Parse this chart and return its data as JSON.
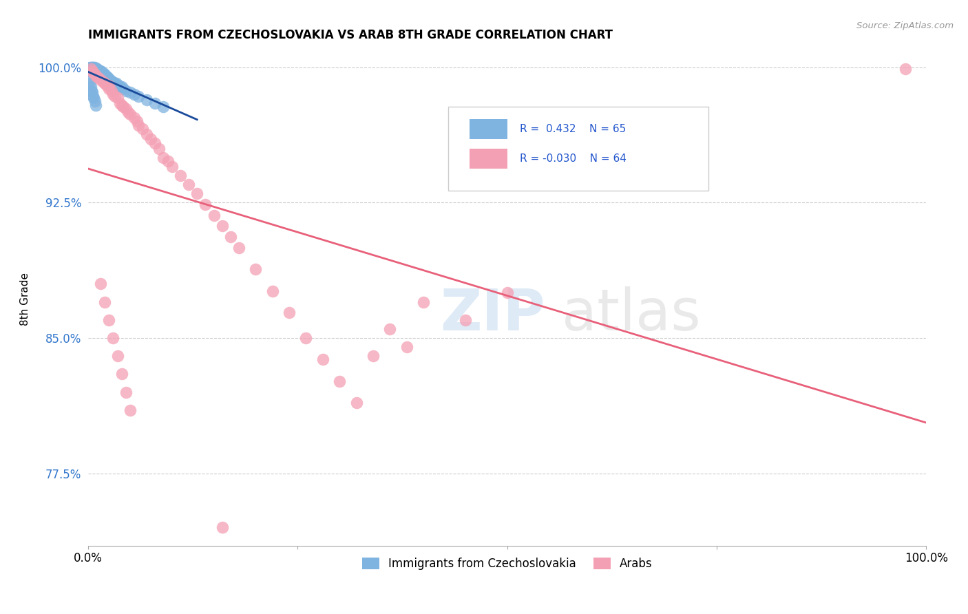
{
  "title": "IMMIGRANTS FROM CZECHOSLOVAKIA VS ARAB 8TH GRADE CORRELATION CHART",
  "source_text": "Source: ZipAtlas.com",
  "ylabel": "8th Grade",
  "xlim": [
    0.0,
    1.0
  ],
  "ylim": [
    0.735,
    1.008
  ],
  "yticks": [
    0.775,
    0.85,
    0.925,
    1.0
  ],
  "ytick_labels": [
    "77.5%",
    "85.0%",
    "92.5%",
    "100.0%"
  ],
  "xticks": [
    0.0,
    0.25,
    0.5,
    0.75,
    1.0
  ],
  "xtick_labels": [
    "0.0%",
    "",
    "",
    "",
    "100.0%"
  ],
  "legend_label1": "Immigrants from Czechoslovakia",
  "legend_label2": "Arabs",
  "blue_color": "#7fb3e0",
  "pink_color": "#f4a0b4",
  "blue_line_color": "#1a4a9a",
  "pink_line_color": "#e8607a",
  "blue_x": [
    0.001,
    0.002,
    0.002,
    0.003,
    0.003,
    0.004,
    0.004,
    0.005,
    0.005,
    0.006,
    0.006,
    0.007,
    0.007,
    0.008,
    0.008,
    0.009,
    0.009,
    0.01,
    0.01,
    0.011,
    0.011,
    0.012,
    0.012,
    0.013,
    0.013,
    0.014,
    0.014,
    0.015,
    0.015,
    0.016,
    0.016,
    0.017,
    0.018,
    0.019,
    0.02,
    0.021,
    0.022,
    0.023,
    0.024,
    0.025,
    0.026,
    0.028,
    0.03,
    0.032,
    0.034,
    0.036,
    0.038,
    0.04,
    0.042,
    0.045,
    0.05,
    0.055,
    0.06,
    0.07,
    0.08,
    0.09,
    0.001,
    0.002,
    0.003,
    0.004,
    0.005,
    0.006,
    0.007,
    0.008,
    0.009
  ],
  "blue_y": [
    0.999,
    1.0,
    0.998,
    1.0,
    0.999,
    1.0,
    0.999,
    1.0,
    0.998,
    1.0,
    0.999,
    1.0,
    0.999,
    1.0,
    0.998,
    0.999,
    0.997,
    0.999,
    0.998,
    0.999,
    0.997,
    0.998,
    0.997,
    0.998,
    0.997,
    0.998,
    0.996,
    0.998,
    0.997,
    0.997,
    0.996,
    0.997,
    0.996,
    0.996,
    0.996,
    0.995,
    0.995,
    0.994,
    0.994,
    0.993,
    0.993,
    0.992,
    0.992,
    0.991,
    0.991,
    0.99,
    0.989,
    0.989,
    0.988,
    0.987,
    0.986,
    0.985,
    0.984,
    0.982,
    0.98,
    0.978,
    0.993,
    0.991,
    0.989,
    0.987,
    0.986,
    0.984,
    0.983,
    0.981,
    0.979
  ],
  "pink_x": [
    0.003,
    0.005,
    0.006,
    0.008,
    0.01,
    0.012,
    0.015,
    0.018,
    0.02,
    0.022,
    0.025,
    0.025,
    0.028,
    0.03,
    0.032,
    0.035,
    0.038,
    0.04,
    0.042,
    0.045,
    0.048,
    0.05,
    0.055,
    0.058,
    0.06,
    0.065,
    0.07,
    0.075,
    0.08,
    0.085,
    0.09,
    0.095,
    0.1,
    0.11,
    0.12,
    0.13,
    0.14,
    0.15,
    0.16,
    0.17,
    0.18,
    0.2,
    0.22,
    0.24,
    0.26,
    0.28,
    0.3,
    0.32,
    0.34,
    0.36,
    0.38,
    0.4,
    0.45,
    0.5,
    0.015,
    0.02,
    0.025,
    0.03,
    0.035,
    0.04,
    0.045,
    0.05,
    0.975,
    0.16
  ],
  "pink_y": [
    0.999,
    0.998,
    0.997,
    0.996,
    0.995,
    0.994,
    0.993,
    0.992,
    0.991,
    0.99,
    0.99,
    0.988,
    0.987,
    0.985,
    0.984,
    0.983,
    0.98,
    0.979,
    0.978,
    0.977,
    0.975,
    0.974,
    0.972,
    0.97,
    0.968,
    0.966,
    0.963,
    0.96,
    0.958,
    0.955,
    0.95,
    0.948,
    0.945,
    0.94,
    0.935,
    0.93,
    0.924,
    0.918,
    0.912,
    0.906,
    0.9,
    0.888,
    0.876,
    0.864,
    0.85,
    0.838,
    0.826,
    0.814,
    0.84,
    0.855,
    0.845,
    0.87,
    0.86,
    0.875,
    0.88,
    0.87,
    0.86,
    0.85,
    0.84,
    0.83,
    0.82,
    0.81,
    0.999,
    0.745
  ]
}
